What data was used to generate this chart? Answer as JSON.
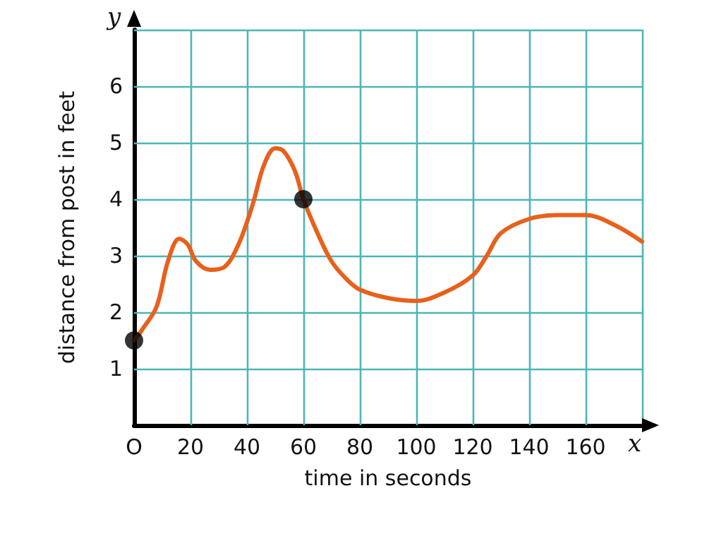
{
  "chart_data": {
    "type": "line",
    "xlabel": "time in seconds",
    "ylabel": "distance from post in feet",
    "annotations": [
      "x",
      "y"
    ],
    "xlim": [
      0,
      180
    ],
    "ylim": [
      0,
      7
    ],
    "xticks": [
      {
        "value": 0,
        "label": "O"
      },
      20,
      40,
      60,
      80,
      100,
      120,
      140,
      160,
      {
        "value": 180,
        "label": null
      }
    ],
    "yticks": [
      {
        "value": 0,
        "label": null
      },
      1,
      2,
      3,
      4,
      5,
      6,
      {
        "value": 7,
        "label": null
      }
    ],
    "grid": true,
    "marker": "none",
    "line_style": "solid",
    "series": [
      {
        "color": "#e8601c",
        "x": [
          0,
          3,
          8,
          12,
          16,
          19,
          22,
          27,
          32,
          37,
          42,
          46,
          50,
          53,
          57,
          60,
          65,
          70,
          75,
          80,
          90,
          100,
          110,
          120,
          125,
          130,
          140,
          150,
          160,
          170,
          180
        ],
        "values": [
          1.5,
          1.7,
          2.1,
          2.9,
          3.3,
          3.2,
          2.9,
          2.75,
          2.8,
          3.2,
          3.9,
          4.6,
          4.9,
          4.85,
          4.5,
          4,
          3.4,
          2.9,
          2.6,
          2.4,
          2.25,
          2.2,
          2.35,
          2.65,
          3,
          3.4,
          3.65,
          3.72,
          3.72,
          3.55,
          3.25
        ]
      },
      {
        "type": "scatter",
        "marker": "circle",
        "color": "#000000",
        "x": [
          0,
          60
        ],
        "values": [
          1.5,
          4
        ]
      }
    ]
  }
}
